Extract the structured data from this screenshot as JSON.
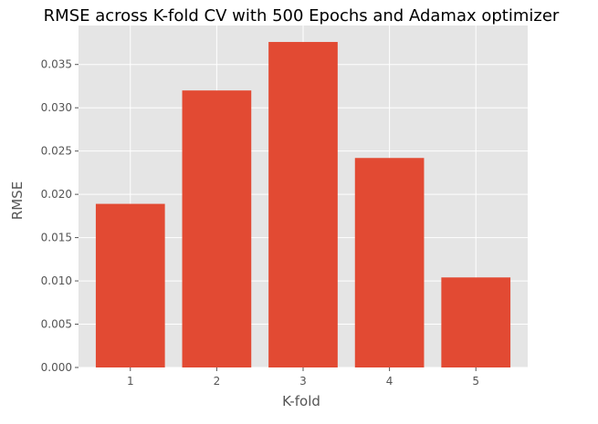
{
  "chart_data": {
    "type": "bar",
    "title": "RMSE across K-fold CV with 500 Epochs and Adamax optimizer",
    "xlabel": "K-fold",
    "ylabel": "RMSE",
    "categories": [
      "1",
      "2",
      "3",
      "4",
      "5"
    ],
    "values": [
      0.0189,
      0.032,
      0.0376,
      0.0242,
      0.0104
    ],
    "ylim": [
      0,
      0.0395
    ],
    "yticks": [
      0.0,
      0.005,
      0.01,
      0.015,
      0.02,
      0.025,
      0.03,
      0.035
    ],
    "ytick_labels": [
      "0.000",
      "0.005",
      "0.010",
      "0.015",
      "0.020",
      "0.025",
      "0.030",
      "0.035"
    ],
    "grid": true,
    "colors": {
      "bar": "#E24A33",
      "plot_background": "#E5E5E5",
      "grid": "#FFFFFF",
      "text": "#555555"
    }
  }
}
